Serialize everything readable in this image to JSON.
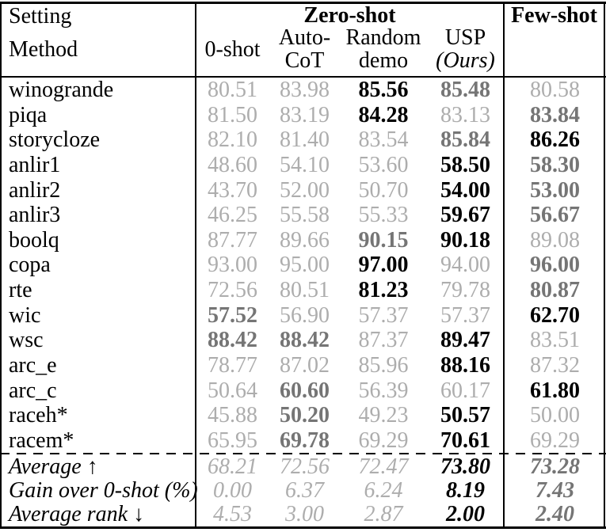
{
  "colors": {
    "muted": "#adadad",
    "second": "#757575",
    "best": "#000000"
  },
  "header": {
    "setting": "Setting",
    "method": "Method",
    "zero_shot_group": "Zero-shot",
    "few_shot_group": "Few-shot",
    "subcols": [
      {
        "line1": "0-shot",
        "line2": ""
      },
      {
        "line1": "Auto-",
        "line2": "CoT"
      },
      {
        "line1": "Random",
        "line2": "demo"
      },
      {
        "line1": "USP",
        "line2": "(Ours)"
      }
    ]
  },
  "rows": [
    {
      "label": "winogrande",
      "values": [
        "80.51",
        "83.98",
        "85.56",
        "85.48",
        "80.58"
      ],
      "styles": [
        "g",
        "g",
        "bk",
        "bg",
        "g"
      ]
    },
    {
      "label": "piqa",
      "values": [
        "81.50",
        "83.19",
        "84.28",
        "83.13",
        "83.84"
      ],
      "styles": [
        "g",
        "g",
        "bk",
        "g",
        "bg"
      ]
    },
    {
      "label": "storycloze",
      "values": [
        "82.10",
        "81.40",
        "83.54",
        "85.84",
        "86.26"
      ],
      "styles": [
        "g",
        "g",
        "g",
        "bg",
        "bk"
      ]
    },
    {
      "label": "anlir1",
      "values": [
        "48.60",
        "54.10",
        "53.60",
        "58.50",
        "58.30"
      ],
      "styles": [
        "g",
        "g",
        "g",
        "bk",
        "bg"
      ]
    },
    {
      "label": "anlir2",
      "values": [
        "43.70",
        "52.00",
        "50.70",
        "54.00",
        "53.00"
      ],
      "styles": [
        "g",
        "g",
        "g",
        "bk",
        "bg"
      ]
    },
    {
      "label": "anlir3",
      "values": [
        "46.25",
        "55.58",
        "55.33",
        "59.67",
        "56.67"
      ],
      "styles": [
        "g",
        "g",
        "g",
        "bk",
        "bg"
      ]
    },
    {
      "label": "boolq",
      "values": [
        "87.77",
        "89.66",
        "90.15",
        "90.18",
        "89.08"
      ],
      "styles": [
        "g",
        "g",
        "bg",
        "bk",
        "g"
      ]
    },
    {
      "label": "copa",
      "values": [
        "93.00",
        "95.00",
        "97.00",
        "94.00",
        "96.00"
      ],
      "styles": [
        "g",
        "g",
        "bk",
        "g",
        "bg"
      ]
    },
    {
      "label": "rte",
      "values": [
        "72.56",
        "80.51",
        "81.23",
        "79.78",
        "80.87"
      ],
      "styles": [
        "g",
        "g",
        "bk",
        "g",
        "bg"
      ]
    },
    {
      "label": "wic",
      "values": [
        "57.52",
        "56.90",
        "57.37",
        "57.37",
        "62.70"
      ],
      "styles": [
        "bg",
        "g",
        "g",
        "g",
        "bk"
      ]
    },
    {
      "label": "wsc",
      "values": [
        "88.42",
        "88.42",
        "87.37",
        "89.47",
        "83.51"
      ],
      "styles": [
        "bg",
        "bg",
        "g",
        "bk",
        "g"
      ]
    },
    {
      "label": "arc_e",
      "values": [
        "78.77",
        "87.02",
        "85.96",
        "88.16",
        "87.32"
      ],
      "styles": [
        "g",
        "g",
        "g",
        "bk",
        "g"
      ]
    },
    {
      "label": "arc_c",
      "values": [
        "50.64",
        "60.60",
        "56.39",
        "60.17",
        "61.80"
      ],
      "styles": [
        "g",
        "bg",
        "g",
        "g",
        "bk"
      ]
    },
    {
      "label": "raceh*",
      "values": [
        "45.88",
        "50.20",
        "49.23",
        "50.57",
        "50.00"
      ],
      "styles": [
        "g",
        "bg",
        "g",
        "bk",
        "g"
      ]
    },
    {
      "label": "racem*",
      "values": [
        "65.95",
        "69.78",
        "69.29",
        "70.61",
        "69.29"
      ],
      "styles": [
        "g",
        "bg",
        "g",
        "bk",
        "g"
      ]
    }
  ],
  "summary": [
    {
      "label": "Average ↑",
      "values": [
        "68.21",
        "72.56",
        "72.47",
        "73.80",
        "73.28"
      ],
      "styles": [
        "g",
        "g",
        "g",
        "bk",
        "bg"
      ]
    },
    {
      "label": "Gain over 0-shot (%)",
      "values": [
        "0.00",
        "6.37",
        "6.24",
        "8.19",
        "7.43"
      ],
      "styles": [
        "g",
        "g",
        "g",
        "bk",
        "bg"
      ]
    },
    {
      "label": "Average rank ↓",
      "values": [
        "4.53",
        "3.00",
        "2.87",
        "2.00",
        "2.40"
      ],
      "styles": [
        "g",
        "g",
        "g",
        "bk",
        "bg"
      ]
    }
  ]
}
